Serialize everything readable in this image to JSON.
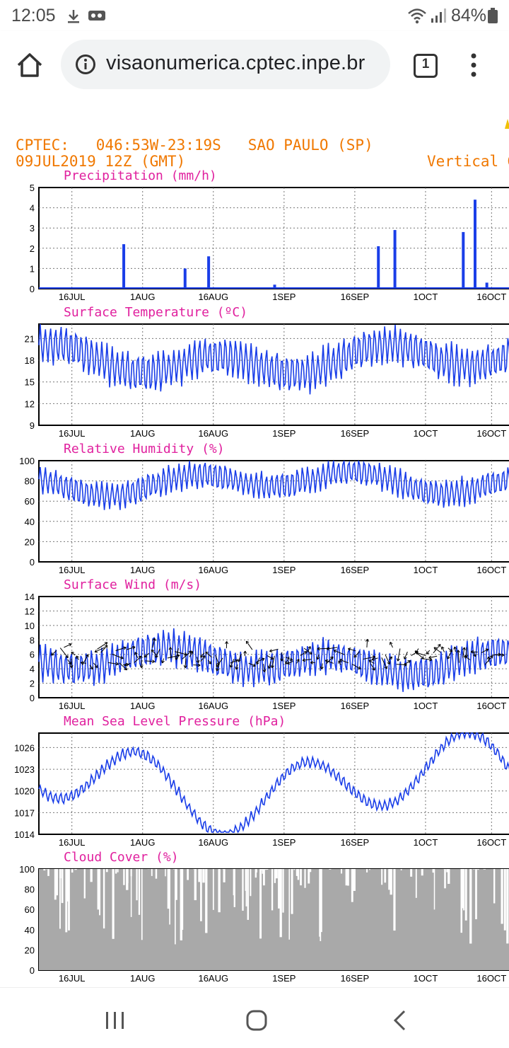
{
  "status_bar": {
    "time": "12:05",
    "battery": "84%"
  },
  "browser": {
    "url": "visaonumerica.cptec.inpe.br",
    "tab_count": "1"
  },
  "page": {
    "header_line1": "CPTEC:   046:53W-23:19S   SAO PAULO (SP)",
    "header_line2": "09JUL2019 12Z (GMT)",
    "header_right": "Vertical Gr"
  },
  "colors": {
    "header": "#f07800",
    "panel_title": "#e0209e",
    "series": "#1a3ee8",
    "wind_vectors": "#000000",
    "cloud_fill": "#a9a9a9"
  },
  "chart_data": [
    {
      "type": "bar",
      "title": "Precipitation (mm/h)",
      "x_ticks": [
        "16JUL",
        "1AUG",
        "16AUG",
        "1SEP",
        "16SEP",
        "1OCT",
        "16OCT"
      ],
      "y_ticks": [
        "0",
        "1",
        "2",
        "3",
        "4",
        "5"
      ],
      "ylim": [
        0,
        5
      ],
      "grid": true,
      "series": [
        {
          "values": [
            [
              0.1,
              0
            ],
            [
              0.18,
              2.2
            ],
            [
              0.31,
              1.0
            ],
            [
              0.36,
              1.6
            ],
            [
              0.5,
              0.2
            ],
            [
              0.72,
              2.1
            ],
            [
              0.755,
              2.9
            ],
            [
              0.9,
              2.8
            ],
            [
              0.925,
              4.4
            ],
            [
              0.95,
              0.3
            ]
          ]
        }
      ]
    },
    {
      "type": "line",
      "title": "Surface Temperature (ºC)",
      "x_ticks": [
        "16JUL",
        "1AUG",
        "16AUG",
        "1SEP",
        "16SEP",
        "1OCT",
        "16OCT"
      ],
      "y_ticks": [
        "9",
        "12",
        "15",
        "18",
        "21"
      ],
      "ylim": [
        9,
        23
      ],
      "grid": true
    },
    {
      "type": "line",
      "title": "Relative Humidity (%)",
      "x_ticks": [
        "16JUL",
        "1AUG",
        "16AUG",
        "1SEP",
        "16SEP",
        "1OCT",
        "16OCT"
      ],
      "y_ticks": [
        "0",
        "20",
        "40",
        "60",
        "80",
        "100"
      ],
      "ylim": [
        0,
        100
      ],
      "grid": true
    },
    {
      "type": "line",
      "title": "Surface Wind (m/s)",
      "x_ticks": [
        "16JUL",
        "1AUG",
        "16AUG",
        "1SEP",
        "16SEP",
        "1OCT",
        "16OCT"
      ],
      "y_ticks": [
        "0",
        "2",
        "4",
        "6",
        "8",
        "10",
        "12",
        "14"
      ],
      "ylim": [
        0,
        14
      ],
      "grid": true
    },
    {
      "type": "line",
      "title": "Mean Sea Level Pressure (hPa)",
      "x_ticks": [
        "16JUL",
        "1AUG",
        "16AUG",
        "1SEP",
        "16SEP",
        "1OCT",
        "16OCT"
      ],
      "y_ticks": [
        "1014",
        "1017",
        "1020",
        "1023",
        "1026"
      ],
      "ylim": [
        1014,
        1028
      ],
      "grid": true
    },
    {
      "type": "area",
      "title": "Cloud Cover (%)",
      "x_ticks": [
        "16JUL",
        "1AUG",
        "16AUG",
        "1SEP",
        "16SEP",
        "1OCT",
        "16OCT"
      ],
      "y_ticks": [
        "0",
        "20",
        "40",
        "60",
        "80",
        "100"
      ],
      "ylim": [
        0,
        100
      ],
      "grid": true
    }
  ]
}
